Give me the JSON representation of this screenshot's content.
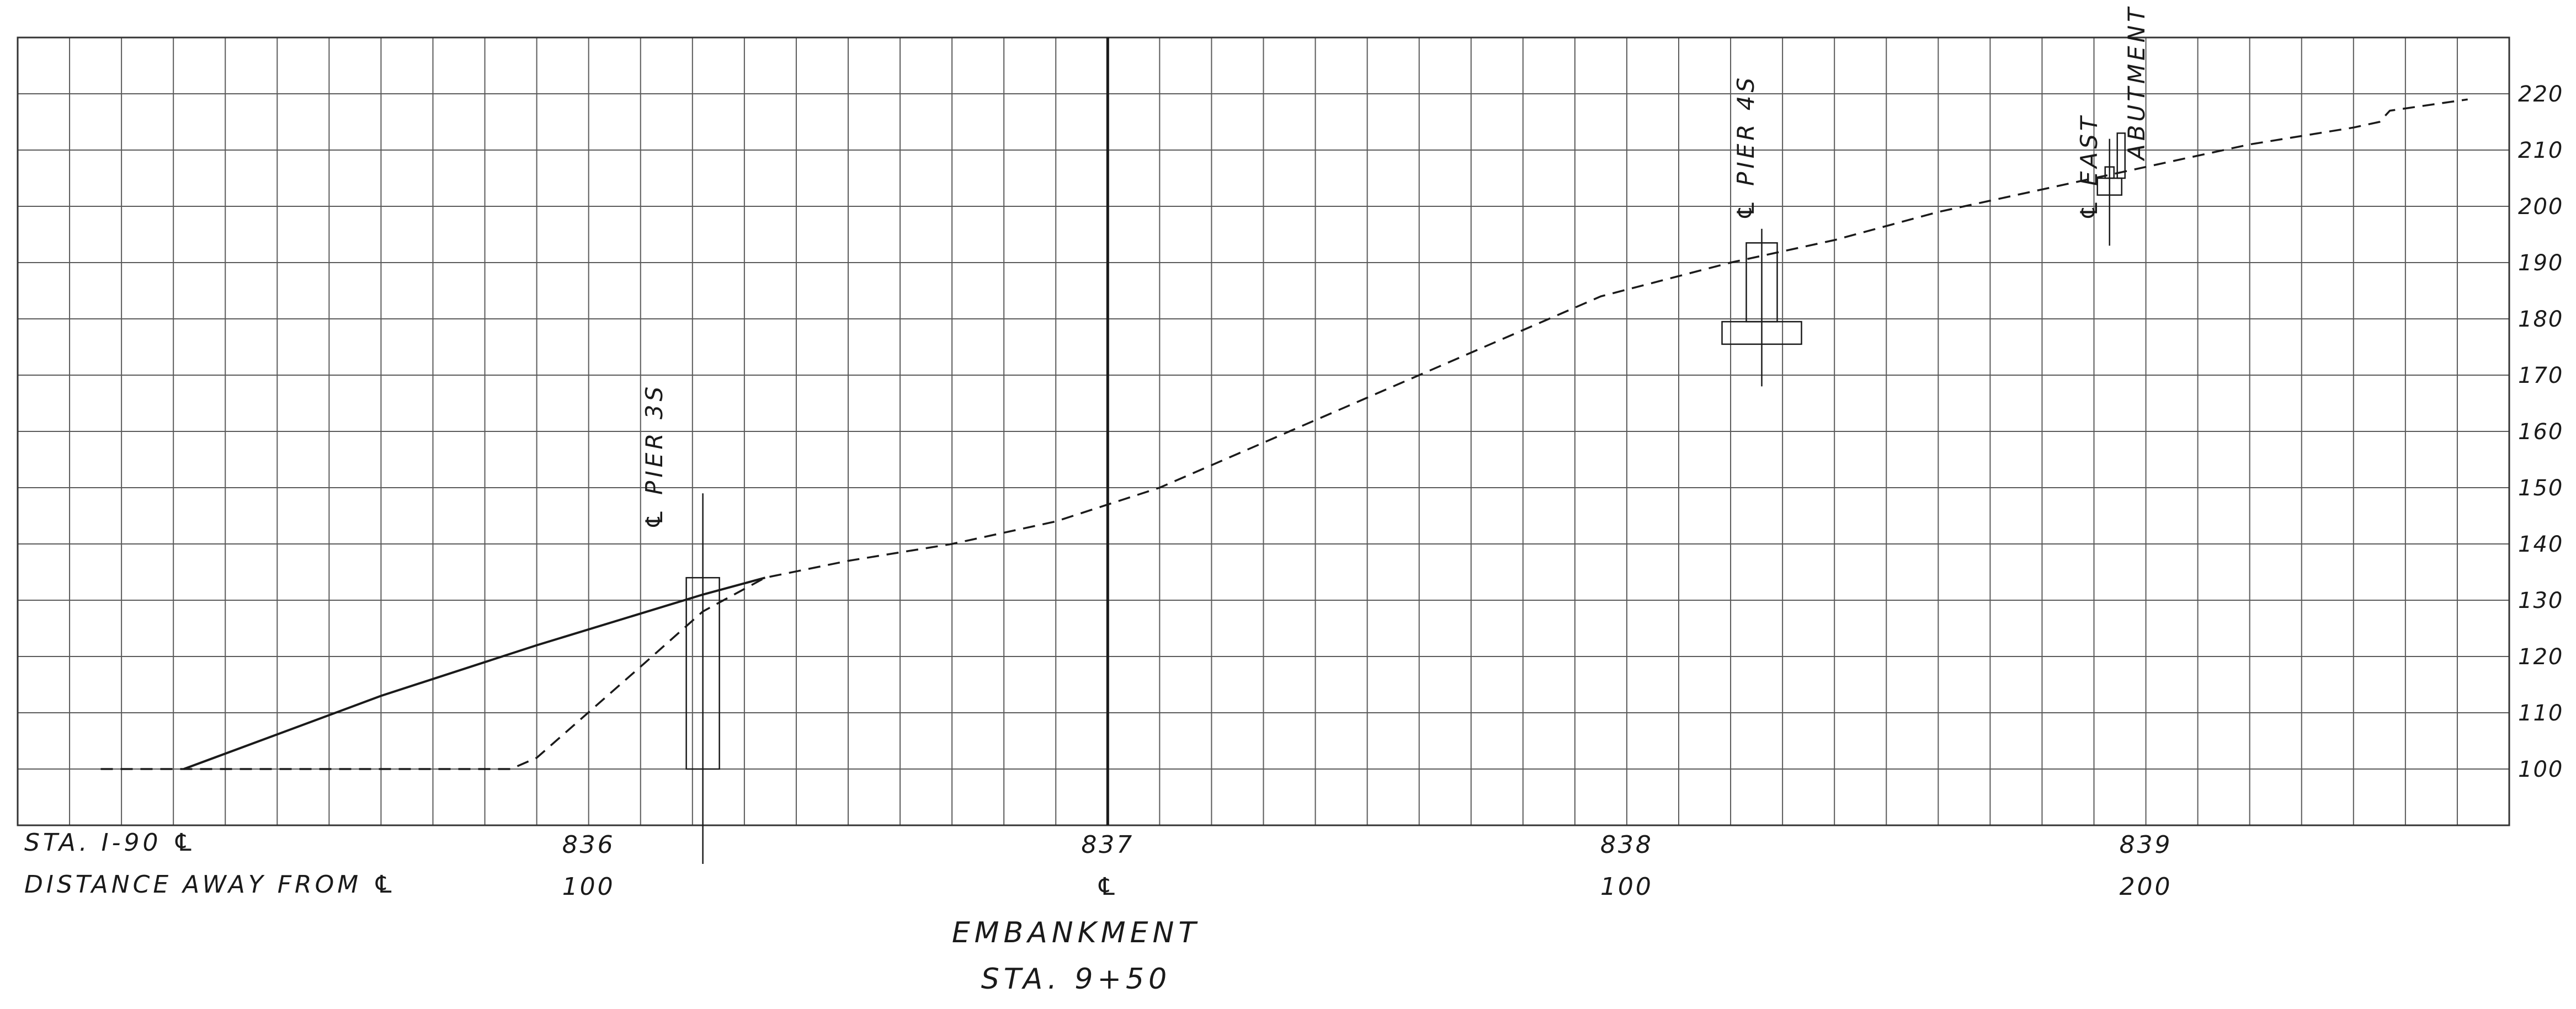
{
  "chart_data": {
    "type": "line",
    "x_axis": {
      "row_labels": [
        "STA. I-90 ℄",
        "DISTANCE AWAY FROM ℄"
      ],
      "stations": [
        {
          "x": 836,
          "label": "836",
          "distance": "100"
        },
        {
          "x": 837,
          "label": "837",
          "distance": "℄"
        },
        {
          "x": 838,
          "label": "838",
          "distance": "100"
        },
        {
          "x": 839,
          "label": "839",
          "distance": "200"
        }
      ],
      "xlim": [
        834.9,
        839.7
      ]
    },
    "y_axis": {
      "ticks": [
        100,
        110,
        120,
        130,
        140,
        150,
        160,
        170,
        180,
        190,
        200,
        210,
        220
      ],
      "ylim": [
        90,
        230
      ]
    },
    "grid": true,
    "title": "EMBANKMENT",
    "subtitle": "STA. 9+50",
    "series": [
      {
        "style": "dashed",
        "x": [
          835.06,
          835.22,
          835.85,
          835.9,
          836.11,
          836.22,
          836.34,
          836.5,
          836.7,
          836.9,
          837.1,
          837.3,
          837.45,
          837.6,
          837.8,
          837.95,
          838.2,
          838.4,
          838.6,
          838.8,
          839.0,
          839.2,
          839.4,
          839.45,
          839.47,
          839.62
        ],
        "y": [
          100,
          100,
          100,
          102,
          119,
          128,
          134,
          137,
          140,
          144,
          150,
          158,
          164,
          170,
          178,
          184,
          190,
          194,
          199,
          203,
          207,
          211,
          214,
          215,
          217,
          219
        ]
      },
      {
        "style": "solid",
        "x": [
          835.22,
          835.6,
          835.9,
          836.22,
          836.34
        ],
        "y": [
          100,
          113,
          122,
          131,
          134
        ]
      }
    ],
    "annotations": [
      {
        "label": "℄ PIER 3S",
        "x": 836.22
      },
      {
        "label": "℄ PIER 4S",
        "x": 838.26
      },
      {
        "label": "℄ EAST",
        "x": 838.93
      },
      {
        "label": "ABUTMENT",
        "x": 838.93
      }
    ],
    "centerline_x": 837
  }
}
